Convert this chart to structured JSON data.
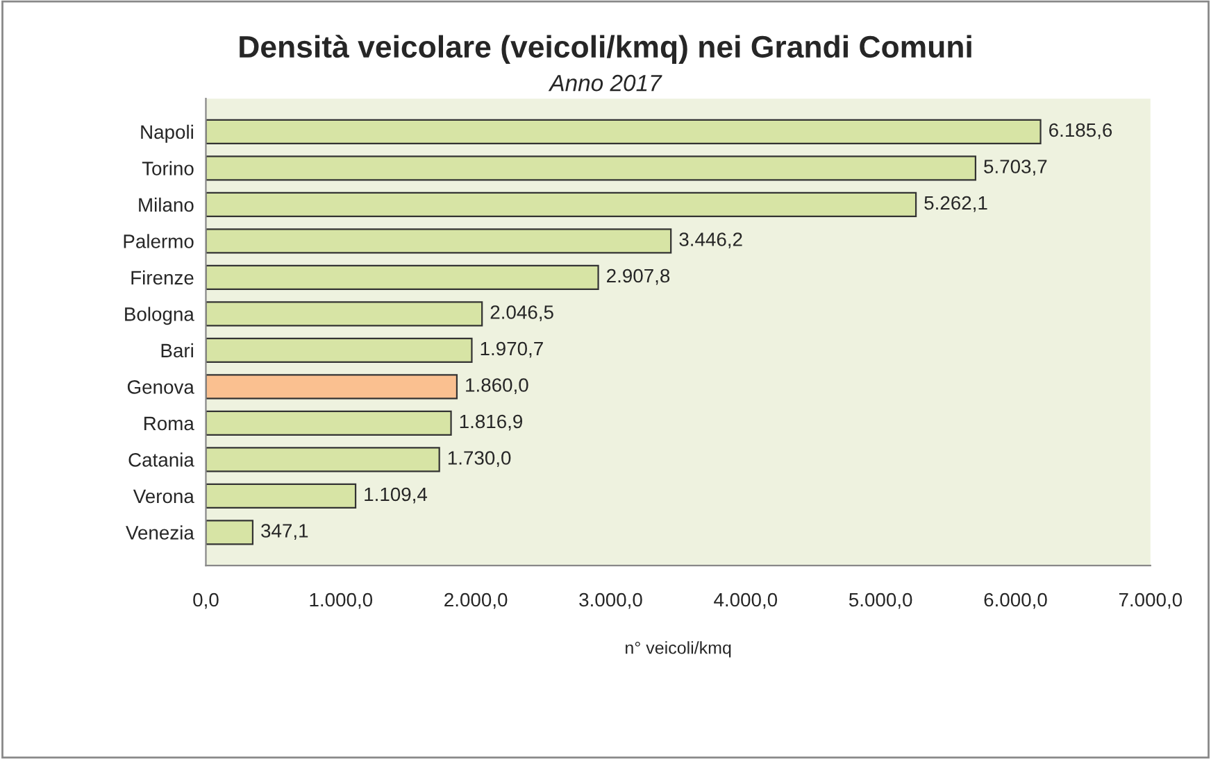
{
  "chart_data": {
    "type": "bar",
    "orientation": "horizontal",
    "title": "Densità veicolare (veicoli/kmq) nei Grandi Comuni",
    "subtitle": "Anno 2017",
    "xlabel": "n° veicoli/kmq",
    "categories": [
      "Napoli",
      "Torino",
      "Milano",
      "Palermo",
      "Firenze",
      "Bologna",
      "Bari",
      "Genova",
      "Roma",
      "Catania",
      "Verona",
      "Venezia"
    ],
    "values": [
      6185.6,
      5703.7,
      5262.1,
      3446.2,
      2907.8,
      2046.5,
      1970.7,
      1860.0,
      1816.9,
      1730.0,
      1109.4,
      347.1
    ],
    "value_labels": [
      "6.185,6",
      "5.703,7",
      "5.262,1",
      "3.446,2",
      "2.907,8",
      "2.046,5",
      "1.970,7",
      "1.860,0",
      "1.816,9",
      "1.730,0",
      "1.109,4",
      "347,1"
    ],
    "colors": [
      "#d7e4a5",
      "#d7e4a5",
      "#d7e4a5",
      "#d7e4a5",
      "#d7e4a5",
      "#d7e4a5",
      "#d7e4a5",
      "#fac090",
      "#d7e4a5",
      "#d7e4a5",
      "#d7e4a5",
      "#d7e4a5"
    ],
    "xlim": [
      0,
      7000
    ],
    "xticks": [
      {
        "value": 0,
        "label": "0,0"
      },
      {
        "value": 1000,
        "label": "1.000,0"
      },
      {
        "value": 2000,
        "label": "2.000,0"
      },
      {
        "value": 3000,
        "label": "3.000,0"
      },
      {
        "value": 4000,
        "label": "4.000,0"
      },
      {
        "value": 5000,
        "label": "5.000,0"
      },
      {
        "value": 6000,
        "label": "6.000,0"
      },
      {
        "value": 7000,
        "label": "7.000,0"
      }
    ],
    "grid": false,
    "legend": false
  }
}
